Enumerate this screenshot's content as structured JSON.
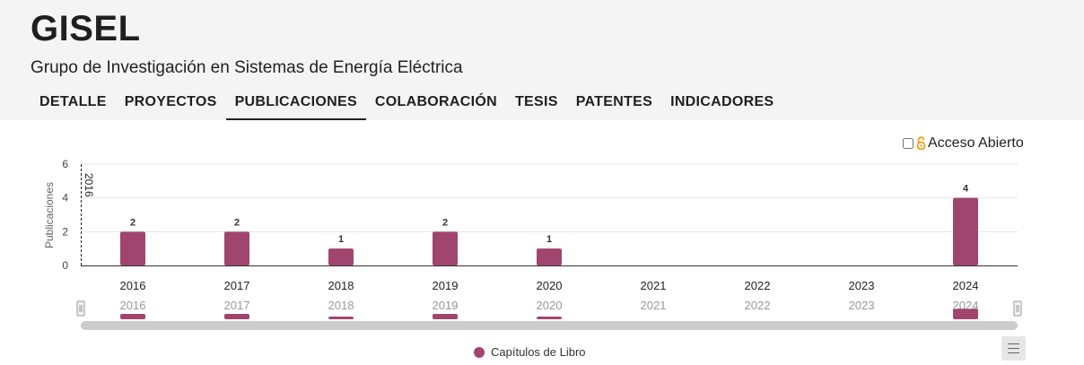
{
  "header": {
    "title": "GISEL",
    "subtitle": "Grupo de Investigación en Sistemas de Energía Eléctrica"
  },
  "tabs": [
    {
      "label": "DETALLE"
    },
    {
      "label": "PROYECTOS"
    },
    {
      "label": "PUBLICACIONES",
      "active": true
    },
    {
      "label": "COLABORACIÓN"
    },
    {
      "label": "TESIS"
    },
    {
      "label": "PATENTES"
    },
    {
      "label": "INDICADORES"
    }
  ],
  "open_access": {
    "label": "Acceso Abierto",
    "checked": false
  },
  "colors": {
    "series": "#a0456e",
    "lock": "#f39c12"
  },
  "chart_data": {
    "type": "bar",
    "categories": [
      "2016",
      "2017",
      "2018",
      "2019",
      "2020",
      "2021",
      "2022",
      "2023",
      "2024"
    ],
    "series": [
      {
        "name": "Capítulos de Libro",
        "values": [
          2,
          2,
          1,
          2,
          1,
          0,
          0,
          0,
          4
        ]
      }
    ],
    "ylabel": "Publicaciones",
    "ylim": [
      0,
      6
    ],
    "yticks": [
      0,
      2,
      4,
      6
    ],
    "plotline_label": "2016",
    "legend": "bottom-center"
  }
}
